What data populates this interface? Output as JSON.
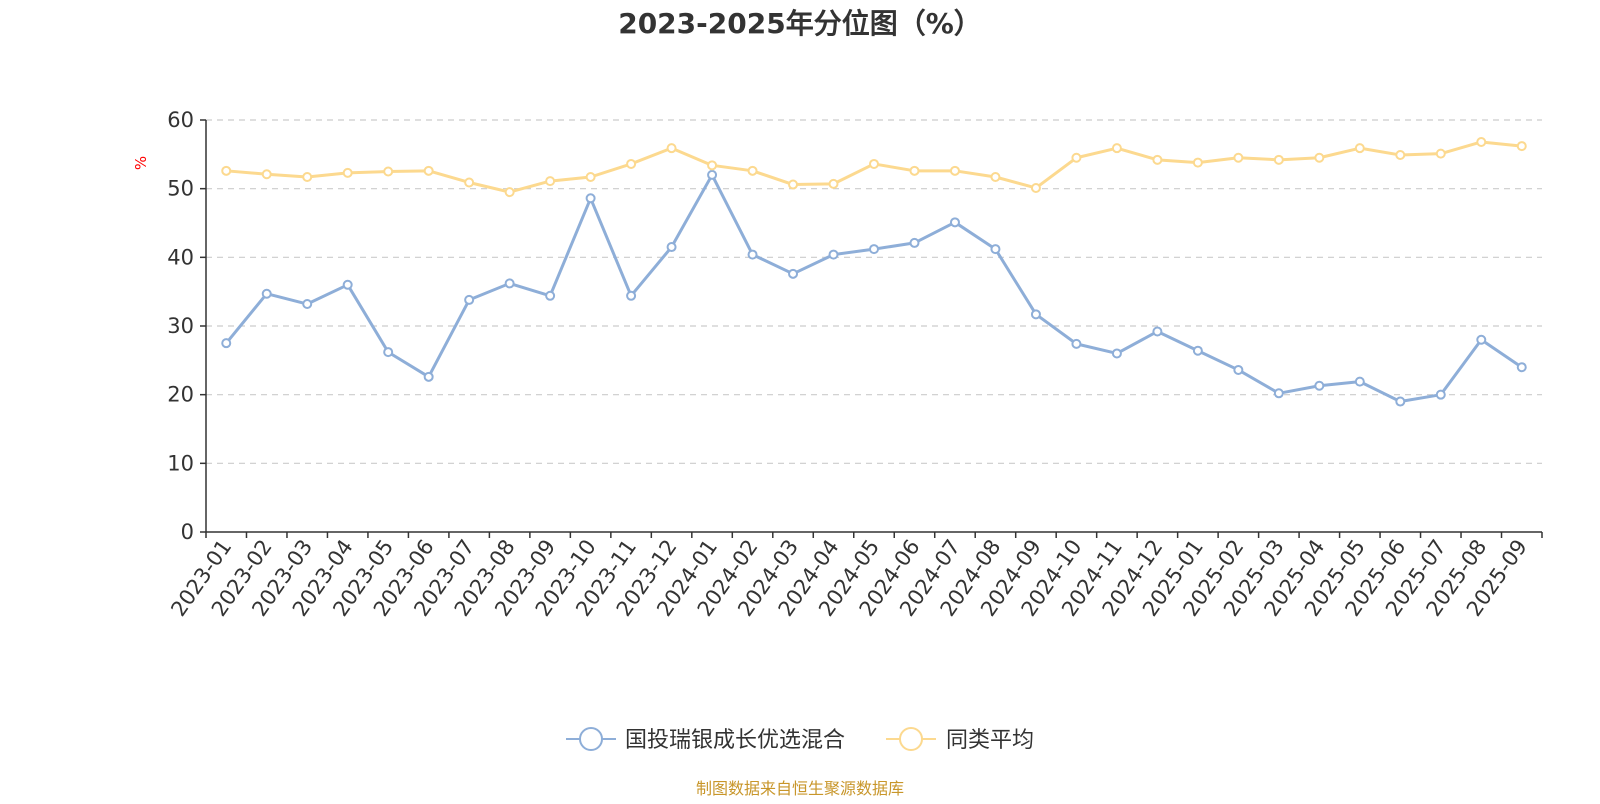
{
  "chart_data": {
    "type": "line",
    "title": "2023-2025年分位图（%）",
    "xlabel": "",
    "ylabel": "%",
    "ylim": [
      0,
      60
    ],
    "yticks": [
      0,
      10,
      20,
      30,
      40,
      50,
      60
    ],
    "grid": true,
    "legend_position": "bottom",
    "categories": [
      "2023-01",
      "2023-02",
      "2023-03",
      "2023-04",
      "2023-05",
      "2023-06",
      "2023-07",
      "2023-08",
      "2023-09",
      "2023-10",
      "2023-11",
      "2023-12",
      "2024-01",
      "2024-02",
      "2024-03",
      "2024-04",
      "2024-05",
      "2024-06",
      "2024-07",
      "2024-08",
      "2024-09",
      "2024-10",
      "2024-11",
      "2024-12",
      "2025-01",
      "2025-02",
      "2025-03",
      "2025-04",
      "2025-05",
      "2025-06",
      "2025-07",
      "2025-08",
      "2025-09"
    ],
    "series": [
      {
        "name": "国投瑞银成长优选混合",
        "color": "#8eaed8",
        "values": [
          27.5,
          34.7,
          33.2,
          36.0,
          26.2,
          22.6,
          33.8,
          36.2,
          34.4,
          48.6,
          34.4,
          41.5,
          52.0,
          40.4,
          37.6,
          40.4,
          41.2,
          42.1,
          45.1,
          41.2,
          31.7,
          27.4,
          26.0,
          29.2,
          26.4,
          23.6,
          20.2,
          21.3,
          21.9,
          19.0,
          20.0,
          28.0,
          24.0
        ]
      },
      {
        "name": "同类平均",
        "color": "#fcd98f",
        "values": [
          52.6,
          52.1,
          51.7,
          52.3,
          52.5,
          52.6,
          50.9,
          49.5,
          51.1,
          51.7,
          53.6,
          55.9,
          53.4,
          52.6,
          50.6,
          50.7,
          53.6,
          52.6,
          52.6,
          51.7,
          50.1,
          54.5,
          55.9,
          54.2,
          53.8,
          54.5,
          54.2,
          54.5,
          55.9,
          54.9,
          55.1,
          56.8,
          56.2
        ]
      }
    ]
  },
  "source_note": "制图数据来自恒生聚源数据库"
}
